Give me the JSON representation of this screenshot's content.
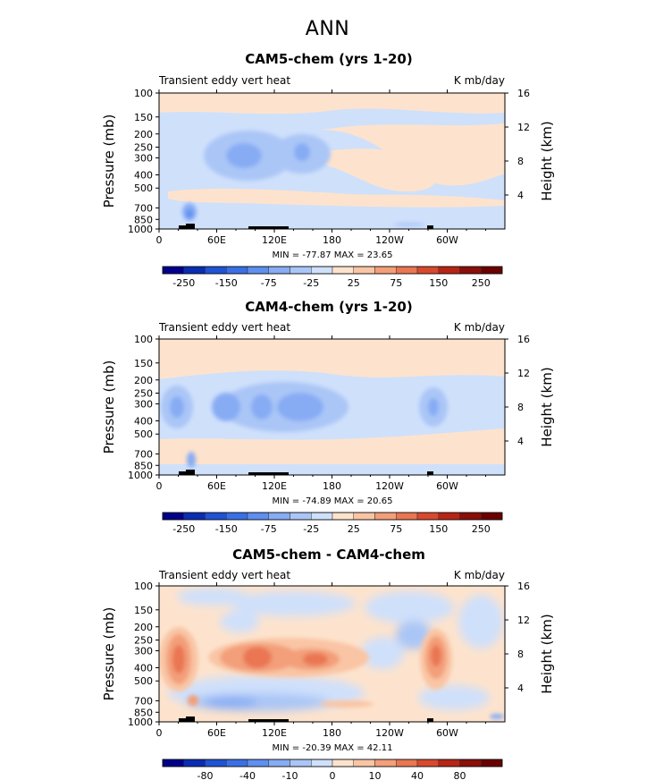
{
  "page_title": "ANN",
  "chart_data": [
    {
      "type": "heatmap",
      "title": "CAM5-chem (yrs 1-20)",
      "left_label": "Transient eddy vert heat",
      "right_label": "K mb/day",
      "ylabel": "Pressure (mb)",
      "ylabel_right": "Height (km)",
      "x_ticks": [
        "0",
        "60E",
        "120E",
        "180",
        "120W",
        "60W"
      ],
      "y_ticks": [
        "100",
        "150",
        "200",
        "250",
        "300",
        "400",
        "500",
        "700",
        "850",
        "1000"
      ],
      "height_ticks": [
        "16",
        "12",
        "8",
        "4"
      ],
      "stats": "MIN = -77.87   MAX =  23.65",
      "colorbar_labels": [
        "-250",
        "-150",
        "-75",
        "-25",
        "25",
        "75",
        "150",
        "250"
      ],
      "colors": [
        "#00008b",
        "#0a2db4",
        "#1f53d6",
        "#3a6fe6",
        "#5f8ff0",
        "#87acf4",
        "#aac6f6",
        "#cfe0fb",
        "#fde3cd",
        "#f9c5a4",
        "#f39f79",
        "#ea7652",
        "#d84a2e",
        "#b72516",
        "#8b0f09",
        "#6b0000"
      ],
      "min": -77.87,
      "max": 23.65,
      "background_level": "light-orange",
      "features": [
        {
          "lon": 100,
          "pressure": 280,
          "value": -50
        },
        {
          "lon": 160,
          "pressure": 280,
          "value": -40
        },
        {
          "lon": 30,
          "pressure": 780,
          "value": -75
        }
      ]
    },
    {
      "type": "heatmap",
      "title": "CAM4-chem (yrs 1-20)",
      "left_label": "Transient eddy vert heat",
      "right_label": "K mb/day",
      "ylabel": "Pressure (mb)",
      "ylabel_right": "Height (km)",
      "x_ticks": [
        "0",
        "60E",
        "120E",
        "180",
        "120W",
        "60W"
      ],
      "y_ticks": [
        "100",
        "150",
        "200",
        "250",
        "300",
        "400",
        "500",
        "700",
        "850",
        "1000"
      ],
      "height_ticks": [
        "16",
        "12",
        "8",
        "4"
      ],
      "stats": "MIN = -74.89   MAX =  20.65",
      "colorbar_labels": [
        "-250",
        "-150",
        "-75",
        "-25",
        "25",
        "75",
        "150",
        "250"
      ],
      "colors": [
        "#00008b",
        "#0a2db4",
        "#1f53d6",
        "#3a6fe6",
        "#5f8ff0",
        "#87acf4",
        "#aac6f6",
        "#cfe0fb",
        "#fde3cd",
        "#f9c5a4",
        "#f39f79",
        "#ea7652",
        "#d84a2e",
        "#b72516",
        "#8b0f09",
        "#6b0000"
      ],
      "min": -74.89,
      "max": 20.65,
      "features": [
        {
          "lon": 20,
          "pressure": 300,
          "value": -50
        },
        {
          "lon": 100,
          "pressure": 300,
          "value": -55
        },
        {
          "lon": 140,
          "pressure": 300,
          "value": -60
        },
        {
          "lon": 300,
          "pressure": 300,
          "value": -50
        }
      ]
    },
    {
      "type": "heatmap",
      "title": "CAM5-chem - CAM4-chem",
      "left_label": "Transient eddy vert heat",
      "right_label": "K mb/day",
      "ylabel": "Pressure (mb)",
      "ylabel_right": "Height (km)",
      "x_ticks": [
        "0",
        "60E",
        "120E",
        "180",
        "120W",
        "60W"
      ],
      "y_ticks": [
        "100",
        "150",
        "200",
        "250",
        "300",
        "400",
        "500",
        "700",
        "850",
        "1000"
      ],
      "height_ticks": [
        "16",
        "12",
        "8",
        "4"
      ],
      "stats": "MIN = -20.39   MAX =  42.11",
      "colorbar_labels": [
        "-80",
        "-40",
        "-10",
        "0",
        "10",
        "40",
        "80"
      ],
      "colors": [
        "#00008b",
        "#0a2db4",
        "#1f53d6",
        "#3a6fe6",
        "#5f8ff0",
        "#87acf4",
        "#aac6f6",
        "#cfe0fb",
        "#fde3cd",
        "#f9c5a4",
        "#f39f79",
        "#ea7652",
        "#d84a2e",
        "#b72516",
        "#8b0f09",
        "#6b0000"
      ],
      "min": -20.39,
      "max": 42.11,
      "features": [
        {
          "lon": 20,
          "pressure": 300,
          "value": 42
        },
        {
          "lon": 100,
          "pressure": 320,
          "value": 35
        },
        {
          "lon": 150,
          "pressure": 330,
          "value": 30
        },
        {
          "lon": 300,
          "pressure": 300,
          "value": 40
        },
        {
          "lon": 100,
          "pressure": 750,
          "value": -15
        }
      ]
    }
  ]
}
